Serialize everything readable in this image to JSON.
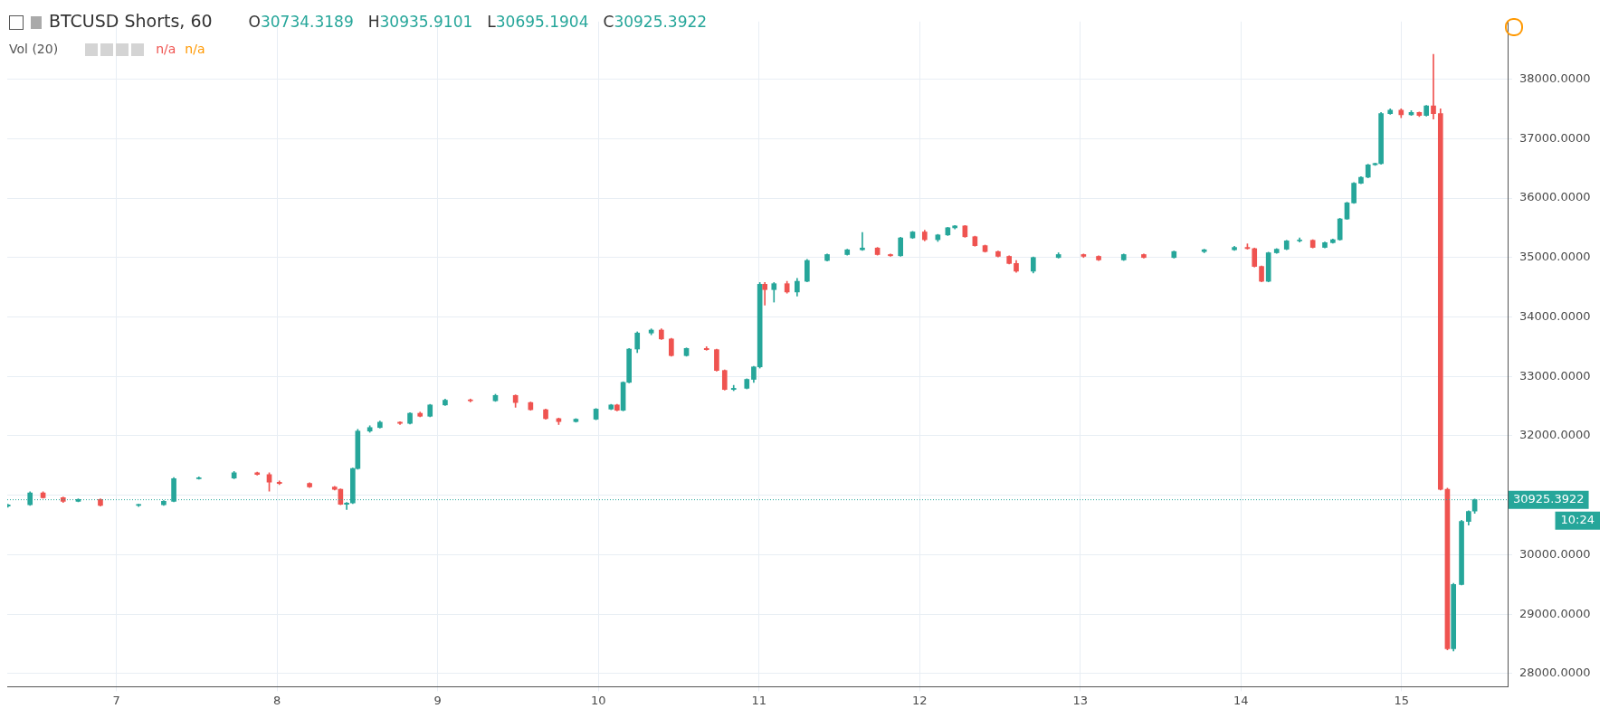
{
  "chart_data": {
    "type": "candlestick",
    "title": "BTCUSD Shorts, 60",
    "annotations": [
      "O30734.3189",
      "H30935.9101",
      "L30695.1904",
      "C30925.3922",
      "Vol (20)",
      "n/a",
      "n/a",
      "10:24"
    ],
    "x": [
      6.324,
      6.462,
      6.543,
      6.668,
      6.762,
      6.9,
      7.138,
      7.294,
      7.357,
      7.513,
      7.732,
      7.876,
      7.951,
      8.014,
      8.202,
      8.358,
      8.395,
      8.433,
      8.471,
      8.502,
      8.577,
      8.64,
      8.765,
      8.827,
      8.89,
      8.952,
      9.046,
      9.203,
      9.359,
      9.484,
      9.578,
      9.672,
      9.753,
      9.86,
      9.985,
      10.079,
      10.116,
      10.154,
      10.191,
      10.242,
      10.329,
      10.392,
      10.454,
      10.548,
      10.673,
      10.736,
      10.786,
      10.842,
      10.924,
      10.967,
      11.005,
      11.036,
      11.093,
      11.174,
      11.237,
      11.299,
      11.424,
      11.549,
      11.643,
      11.737,
      11.818,
      11.881,
      11.956,
      12.031,
      12.113,
      12.175,
      12.219,
      12.282,
      12.344,
      12.407,
      12.488,
      12.557,
      12.601,
      12.707,
      12.864,
      13.02,
      13.114,
      13.27,
      13.395,
      13.583,
      13.771,
      13.959,
      14.04,
      14.084,
      14.128,
      14.171,
      14.222,
      14.284,
      14.365,
      14.447,
      14.522,
      14.572,
      14.616,
      14.66,
      14.703,
      14.747,
      14.791,
      14.835,
      14.872,
      14.929,
      14.997,
      15.06,
      15.11,
      15.154,
      15.198,
      15.242,
      15.285,
      15.323,
      15.373,
      15.417,
      15.455
    ],
    "ohlc": [
      [
        30820,
        30850,
        30800,
        30840
      ],
      [
        30840,
        31060,
        30830,
        31040
      ],
      [
        31040,
        31060,
        30950,
        30960
      ],
      [
        30960,
        30970,
        30880,
        30900
      ],
      [
        30900,
        30940,
        30890,
        30930
      ],
      [
        30930,
        30940,
        30820,
        30830
      ],
      [
        30830,
        30850,
        30810,
        30840
      ],
      [
        30840,
        30910,
        30830,
        30900
      ],
      [
        30900,
        31300,
        30890,
        31280
      ],
      [
        31280,
        31310,
        31270,
        31290
      ],
      [
        31290,
        31400,
        31280,
        31380
      ],
      [
        31380,
        31390,
        31340,
        31350
      ],
      [
        31350,
        31380,
        31070,
        31220
      ],
      [
        31220,
        31240,
        31180,
        31200
      ],
      [
        31200,
        31210,
        31130,
        31140
      ],
      [
        31140,
        31150,
        31090,
        31100
      ],
      [
        31100,
        31110,
        30840,
        30850
      ],
      [
        30850,
        30880,
        30760,
        30870
      ],
      [
        30870,
        31460,
        30860,
        31450
      ],
      [
        31450,
        32110,
        31440,
        32080
      ],
      [
        32080,
        32170,
        32060,
        32140
      ],
      [
        32140,
        32250,
        32130,
        32230
      ],
      [
        32230,
        32240,
        32190,
        32210
      ],
      [
        32210,
        32390,
        32200,
        32380
      ],
      [
        32380,
        32400,
        32320,
        32330
      ],
      [
        32330,
        32530,
        32320,
        32520
      ],
      [
        32520,
        32620,
        32510,
        32600
      ],
      [
        32600,
        32620,
        32570,
        32590
      ],
      [
        32590,
        32700,
        32580,
        32680
      ],
      [
        32680,
        32690,
        32480,
        32560
      ],
      [
        32560,
        32570,
        32430,
        32440
      ],
      [
        32440,
        32450,
        32280,
        32290
      ],
      [
        32290,
        32300,
        32190,
        32240
      ],
      [
        32240,
        32290,
        32230,
        32280
      ],
      [
        32280,
        32460,
        32270,
        32450
      ],
      [
        32450,
        32530,
        32440,
        32520
      ],
      [
        32520,
        32530,
        32420,
        32430
      ],
      [
        32430,
        32910,
        32420,
        32900
      ],
      [
        32900,
        33470,
        32890,
        33460
      ],
      [
        33460,
        33750,
        33400,
        33730
      ],
      [
        33730,
        33800,
        33700,
        33780
      ],
      [
        33780,
        33800,
        33620,
        33630
      ],
      [
        33630,
        33640,
        33340,
        33350
      ],
      [
        33350,
        33480,
        33340,
        33470
      ],
      [
        33470,
        33500,
        33440,
        33450
      ],
      [
        33450,
        33460,
        33090,
        33100
      ],
      [
        33100,
        33110,
        32770,
        32780
      ],
      [
        32780,
        32850,
        32760,
        32800
      ],
      [
        32800,
        32960,
        32790,
        32950
      ],
      [
        32950,
        33170,
        32900,
        33160
      ],
      [
        33160,
        34580,
        33140,
        34550
      ],
      [
        34550,
        34580,
        34200,
        34460
      ],
      [
        34460,
        34580,
        34250,
        34560
      ],
      [
        34560,
        34600,
        34400,
        34420
      ],
      [
        34420,
        34650,
        34350,
        34600
      ],
      [
        34600,
        34970,
        34590,
        34950
      ],
      [
        34950,
        35060,
        34940,
        35050
      ],
      [
        35050,
        35140,
        35040,
        35130
      ],
      [
        35130,
        35420,
        35120,
        35160
      ],
      [
        35160,
        35170,
        35040,
        35050
      ],
      [
        35050,
        35060,
        35020,
        35030
      ],
      [
        35030,
        35340,
        35020,
        35330
      ],
      [
        35330,
        35440,
        35320,
        35430
      ],
      [
        35430,
        35460,
        35280,
        35300
      ],
      [
        35300,
        35390,
        35270,
        35380
      ],
      [
        35380,
        35510,
        35370,
        35500
      ],
      [
        35500,
        35540,
        35480,
        35530
      ],
      [
        35530,
        35540,
        35340,
        35350
      ],
      [
        35350,
        35360,
        35190,
        35200
      ],
      [
        35200,
        35210,
        35090,
        35100
      ],
      [
        35100,
        35110,
        35010,
        35020
      ],
      [
        35020,
        35030,
        34890,
        34900
      ],
      [
        34900,
        34950,
        34750,
        34770
      ],
      [
        34770,
        35010,
        34740,
        35000
      ],
      [
        35000,
        35080,
        34990,
        35050
      ],
      [
        35050,
        35060,
        35000,
        35020
      ],
      [
        35020,
        35030,
        34950,
        34960
      ],
      [
        34960,
        35060,
        34950,
        35050
      ],
      [
        35050,
        35060,
        34990,
        35000
      ],
      [
        35000,
        35110,
        34990,
        35100
      ],
      [
        35100,
        35140,
        35080,
        35130
      ],
      [
        35130,
        35190,
        35120,
        35170
      ],
      [
        35170,
        35230,
        35140,
        35150
      ],
      [
        35150,
        35160,
        34840,
        34850
      ],
      [
        34850,
        34860,
        34590,
        34600
      ],
      [
        34600,
        35090,
        34590,
        35080
      ],
      [
        35080,
        35150,
        35070,
        35140
      ],
      [
        35140,
        35290,
        35130,
        35280
      ],
      [
        35280,
        35330,
        35260,
        35290
      ],
      [
        35290,
        35300,
        35160,
        35170
      ],
      [
        35170,
        35260,
        35160,
        35250
      ],
      [
        35250,
        35310,
        35240,
        35300
      ],
      [
        35300,
        35660,
        35290,
        35650
      ],
      [
        35650,
        35930,
        35640,
        35920
      ],
      [
        35920,
        36260,
        35910,
        36250
      ],
      [
        36250,
        36360,
        36240,
        36350
      ],
      [
        36350,
        36570,
        36340,
        36560
      ],
      [
        36560,
        36590,
        36550,
        36580
      ],
      [
        36580,
        37440,
        36570,
        37420
      ],
      [
        37420,
        37500,
        37410,
        37480
      ],
      [
        37480,
        37500,
        37350,
        37400
      ],
      [
        37400,
        37470,
        37390,
        37440
      ],
      [
        37440,
        37450,
        37370,
        37390
      ],
      [
        37390,
        37560,
        37380,
        37550
      ],
      [
        37550,
        38420,
        37330,
        37420
      ],
      [
        37420,
        37500,
        31090,
        31100
      ],
      [
        31100,
        31120,
        28400,
        28420
      ],
      [
        28420,
        29520,
        28380,
        29500
      ],
      [
        29500,
        30580,
        29490,
        30560
      ],
      [
        30560,
        30740,
        30500,
        30730
      ],
      [
        30734.3189,
        30935.9101,
        30695.1904,
        30925.3922
      ]
    ],
    "colors": [
      "#26a69a",
      "#26a69a",
      "#ef5350",
      "#ef5350",
      "#26a69a",
      "#ef5350",
      "#26a69a",
      "#26a69a",
      "#26a69a",
      "#26a69a",
      "#26a69a",
      "#ef5350",
      "#ef5350",
      "#ef5350",
      "#ef5350",
      "#ef5350",
      "#ef5350",
      "#26a69a",
      "#26a69a",
      "#26a69a",
      "#26a69a",
      "#26a69a",
      "#ef5350",
      "#26a69a",
      "#ef5350",
      "#26a69a",
      "#26a69a",
      "#ef5350",
      "#26a69a",
      "#ef5350",
      "#ef5350",
      "#ef5350",
      "#ef5350",
      "#26a69a",
      "#26a69a",
      "#26a69a",
      "#ef5350",
      "#26a69a",
      "#26a69a",
      "#26a69a",
      "#26a69a",
      "#ef5350",
      "#ef5350",
      "#26a69a",
      "#ef5350",
      "#ef5350",
      "#ef5350",
      "#26a69a",
      "#26a69a",
      "#26a69a",
      "#26a69a",
      "#ef5350",
      "#26a69a",
      "#ef5350",
      "#26a69a",
      "#26a69a",
      "#26a69a",
      "#26a69a",
      "#26a69a",
      "#ef5350",
      "#ef5350",
      "#26a69a",
      "#26a69a",
      "#ef5350",
      "#26a69a",
      "#26a69a",
      "#26a69a",
      "#ef5350",
      "#ef5350",
      "#ef5350",
      "#ef5350",
      "#ef5350",
      "#ef5350",
      "#26a69a",
      "#26a69a",
      "#ef5350",
      "#ef5350",
      "#26a69a",
      "#ef5350",
      "#26a69a",
      "#26a69a",
      "#26a69a",
      "#ef5350",
      "#ef5350",
      "#ef5350",
      "#26a69a",
      "#26a69a",
      "#26a69a",
      "#26a69a",
      "#ef5350",
      "#26a69a",
      "#26a69a",
      "#26a69a",
      "#26a69a",
      "#26a69a",
      "#26a69a",
      "#26a69a",
      "#26a69a",
      "#26a69a",
      "#26a69a",
      "#ef5350",
      "#26a69a",
      "#ef5350",
      "#26a69a",
      "#ef5350",
      "#ef5350",
      "#ef5350",
      "#26a69a",
      "#26a69a",
      "#26a69a",
      "#26a69a"
    ],
    "xlim": [
      6.32,
      15.66
    ],
    "xticks": [
      7,
      8,
      9,
      10,
      11,
      12,
      13,
      14,
      15
    ],
    "ylim": [
      27780,
      38970
    ],
    "yticks": [
      {
        "value": 28000,
        "label": "28000.0000"
      },
      {
        "value": 29000,
        "label": "29000.0000"
      },
      {
        "value": 30000,
        "label": "30000.0000"
      },
      {
        "value": 31000,
        "label": null
      },
      {
        "value": 32000,
        "label": "32000.0000"
      },
      {
        "value": 33000,
        "label": "33000.0000"
      },
      {
        "value": 34000,
        "label": "34000.0000"
      },
      {
        "value": 35000,
        "label": "35000.0000"
      },
      {
        "value": 36000,
        "label": "36000.0000"
      },
      {
        "value": 37000,
        "label": "37000.0000"
      },
      {
        "value": 38000,
        "label": "38000.0000"
      }
    ],
    "ref_lines": [
      {
        "axis": "y",
        "value": 30925.3922,
        "label": "30925.3922",
        "color": "#26a69a",
        "line_style": "dotted"
      }
    ],
    "grid": true,
    "legend": false
  }
}
